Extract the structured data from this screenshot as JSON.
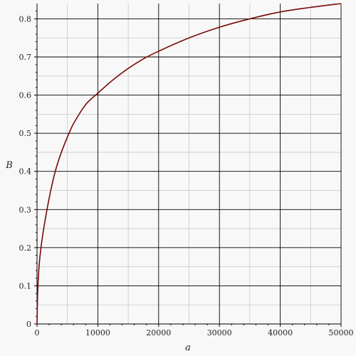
{
  "chart_data": {
    "type": "line",
    "xlabel": "a",
    "ylabel": "B",
    "xlim": [
      0,
      50000
    ],
    "ylim": [
      0,
      0.84
    ],
    "x_ticks": [
      0,
      10000,
      20000,
      30000,
      40000,
      50000
    ],
    "x_tick_labels": [
      "0",
      "10000",
      "20000",
      "30000",
      "40000",
      "50000"
    ],
    "y_ticks": [
      0,
      0.1,
      0.2,
      0.3,
      0.4,
      0.5,
      0.6,
      0.7,
      0.8
    ],
    "y_tick_labels": [
      "0",
      "0.1",
      "0.2",
      "0.3",
      "0.4",
      "0.5",
      "0.6",
      "0.7",
      "0.8"
    ],
    "grid": true,
    "colors": {
      "line": "#7a0a0a",
      "background": "#f8f8f8"
    },
    "series": [
      {
        "x": [
          0,
          100,
          250,
          500,
          1000,
          2000,
          3000,
          4000,
          5000,
          6000,
          8000,
          10000,
          12500,
          15000,
          17500,
          20000,
          25000,
          30000,
          35000,
          40000,
          45000,
          50000
        ],
        "y": [
          0,
          0.08,
          0.13,
          0.18,
          0.24,
          0.33,
          0.4,
          0.45,
          0.49,
          0.525,
          0.575,
          0.605,
          0.64,
          0.67,
          0.695,
          0.715,
          0.75,
          0.778,
          0.8,
          0.818,
          0.83,
          0.84
        ]
      }
    ]
  }
}
